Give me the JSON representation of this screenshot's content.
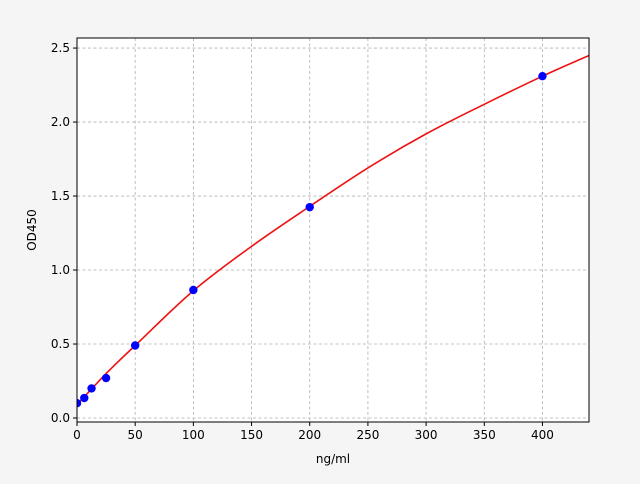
{
  "chart_data": {
    "type": "scatter",
    "title": "",
    "xlabel": "ng/ml",
    "ylabel": "OD450",
    "xlim": [
      0,
      440
    ],
    "ylim": [
      -0.027,
      2.568
    ],
    "xticks": [
      0,
      50,
      100,
      150,
      200,
      250,
      300,
      350,
      400
    ],
    "yticks": [
      0.0,
      0.5,
      1.0,
      1.5,
      2.0,
      2.5
    ],
    "ytick_labels": [
      "0.0",
      "0.5",
      "1.0",
      "1.5",
      "2.0",
      "2.5"
    ],
    "grid": true,
    "points": {
      "x": [
        0,
        6.25,
        12.5,
        25,
        50,
        100,
        200,
        400
      ],
      "y": [
        0.1,
        0.135,
        0.2,
        0.27,
        0.49,
        0.865,
        1.425,
        2.31
      ],
      "color": "#0000ff"
    },
    "fit_curve": {
      "x": [
        0,
        25,
        50,
        100,
        150,
        200,
        250,
        300,
        350,
        400,
        440
      ],
      "y": [
        0.09,
        0.3,
        0.49,
        0.86,
        1.16,
        1.43,
        1.69,
        1.92,
        2.12,
        2.31,
        2.45
      ],
      "color": "#ee1111"
    },
    "background": "#f5f5f5"
  }
}
